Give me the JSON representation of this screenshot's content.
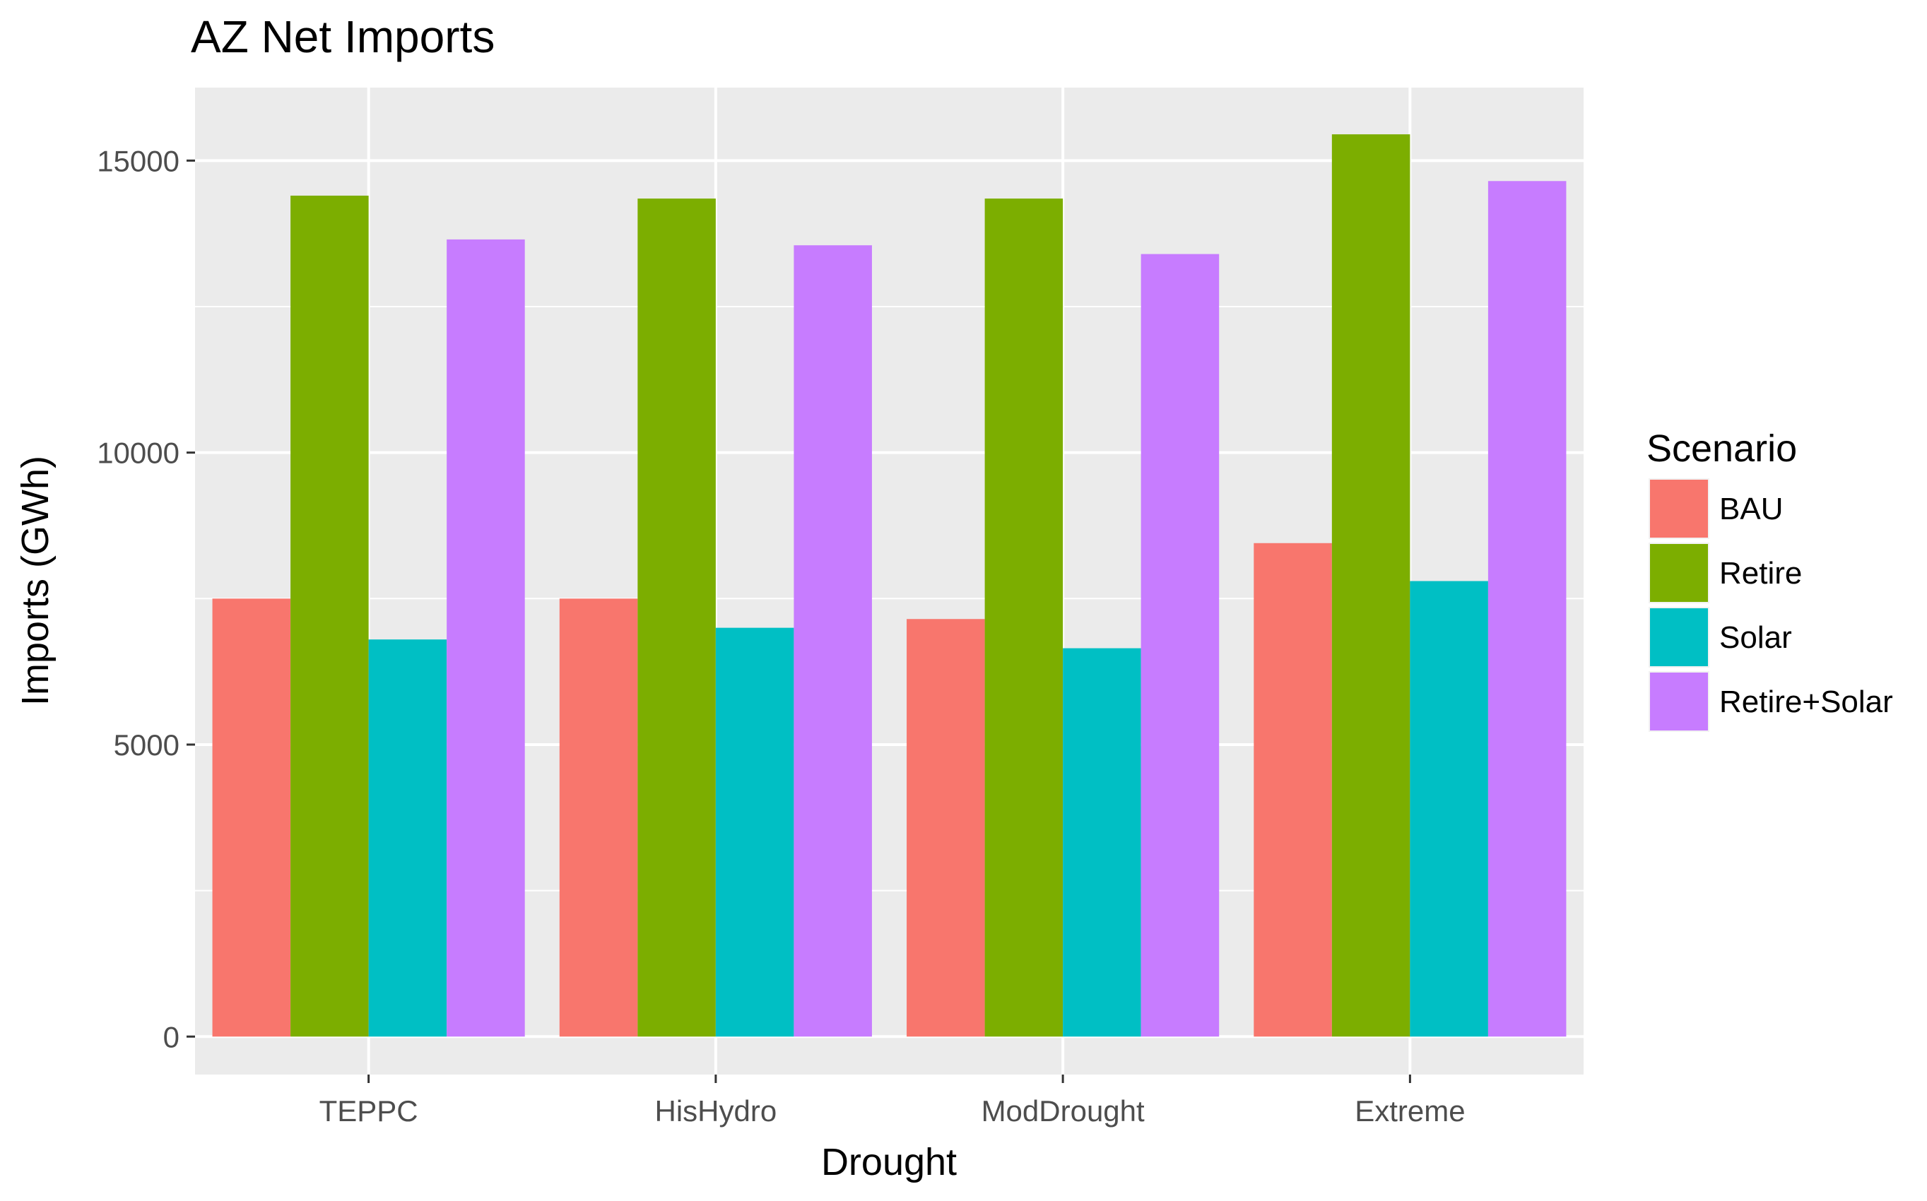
{
  "chart_data": {
    "type": "bar",
    "title": "AZ Net Imports",
    "xlabel": "Drought",
    "ylabel": "Imports (GWh)",
    "categories": [
      "TEPPC",
      "HisHydro",
      "ModDrought",
      "Extreme"
    ],
    "series": [
      {
        "name": "BAU",
        "color": "#F8766D",
        "values": [
          7500,
          7500,
          7150,
          8450
        ]
      },
      {
        "name": "Retire",
        "color": "#7CAE00",
        "values": [
          14400,
          14350,
          14350,
          15450
        ]
      },
      {
        "name": "Solar",
        "color": "#00BFC4",
        "values": [
          6800,
          7000,
          6650,
          7800
        ]
      },
      {
        "name": "Retire+Solar",
        "color": "#C77CFF",
        "values": [
          13650,
          13550,
          13400,
          14650
        ]
      }
    ],
    "ylim": [
      -650,
      16250
    ],
    "y_ticks": [
      0,
      5000,
      10000,
      15000
    ],
    "y_minor_ticks": [
      2500,
      7500,
      12500
    ],
    "grid": true,
    "legend": {
      "title": "Scenario",
      "position": "right"
    },
    "panel_color": "#EBEBEB"
  }
}
